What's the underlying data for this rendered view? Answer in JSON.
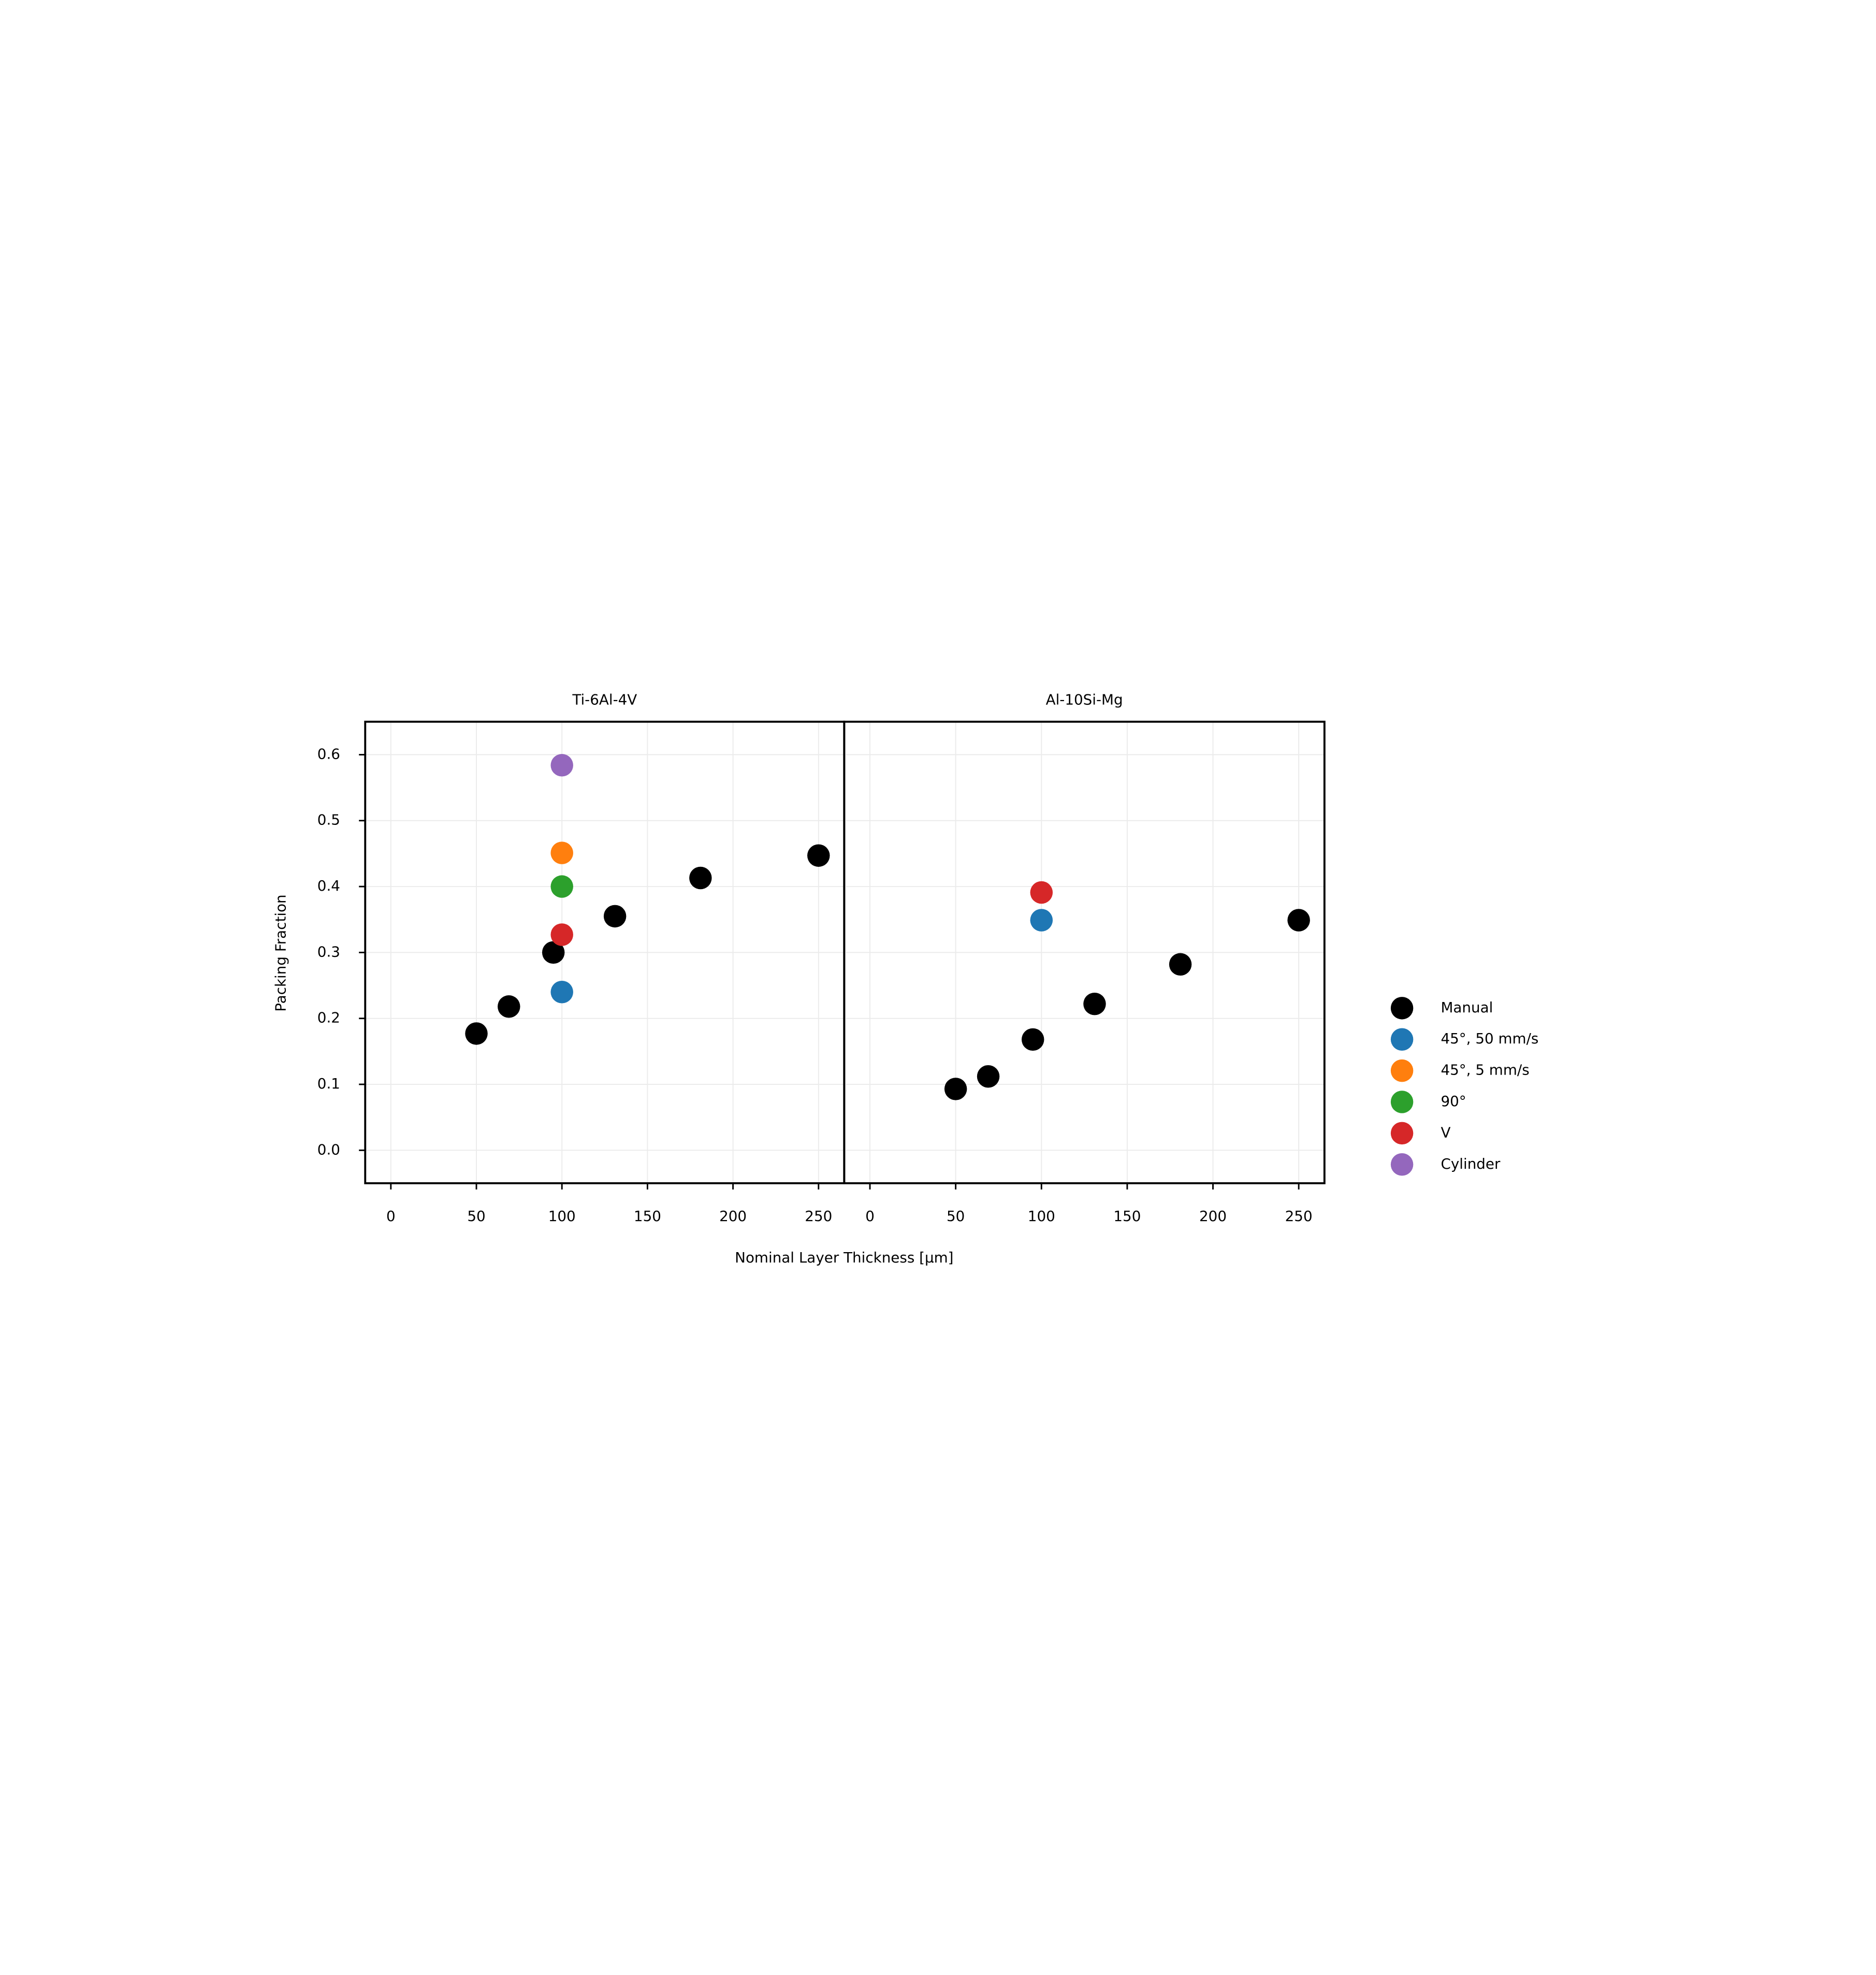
{
  "chart_data": [
    {
      "type": "scatter",
      "title": "Ti-6Al-4V",
      "xlabel": "Nominal Layer Thickness [µm]",
      "ylabel": "Packing Fraction",
      "xlim": [
        -15,
        265
      ],
      "xticks": [
        0,
        50,
        100,
        150,
        200,
        250
      ],
      "ylim": [
        -0.05,
        0.65
      ],
      "yticks": [
        {
          "value": 0,
          "label": "0.0"
        },
        0.1,
        0.2,
        0.3,
        0.4,
        0.5,
        0.6
      ],
      "grid": true,
      "legend": "right",
      "series": [
        {
          "name": "Manual",
          "color": "#000000",
          "x": [
            50,
            69,
            95,
            131,
            181,
            250
          ],
          "values": [
            0.177,
            0.218,
            0.3,
            0.355,
            0.413,
            0.447
          ]
        },
        {
          "name": "45°, 50 mm/s",
          "color": "#1f77b4",
          "x": [
            100
          ],
          "values": [
            0.24
          ]
        },
        {
          "name": "45°, 5 mm/s",
          "color": "#ff7f0e",
          "x": [
            100
          ],
          "values": [
            0.451
          ]
        },
        {
          "name": "90°",
          "color": "#2ca02c",
          "x": [
            100
          ],
          "values": [
            0.4
          ]
        },
        {
          "name": "V",
          "color": "#d62728",
          "x": [
            100
          ],
          "values": [
            0.327
          ]
        },
        {
          "name": "Cylinder",
          "color": "#9467bd",
          "x": [
            100
          ],
          "values": [
            0.584
          ]
        }
      ]
    },
    {
      "type": "scatter",
      "title": "Al-10Si-Mg",
      "xlim": [
        -15,
        265
      ],
      "xticks": [
        0,
        50,
        100,
        150,
        200,
        250
      ],
      "grid": true,
      "series": [
        {
          "name": "Manual",
          "color": "#000000",
          "x": [
            50,
            69,
            95,
            131,
            181,
            250
          ],
          "values": [
            0.093,
            0.112,
            0.168,
            0.222,
            0.282,
            0.349
          ]
        },
        {
          "name": "45°, 50 mm/s",
          "color": "#1f77b4",
          "x": [
            100
          ],
          "values": [
            0.349
          ]
        },
        {
          "name": "V",
          "color": "#d62728",
          "x": [
            100
          ],
          "values": [
            0.391
          ]
        }
      ]
    }
  ]
}
